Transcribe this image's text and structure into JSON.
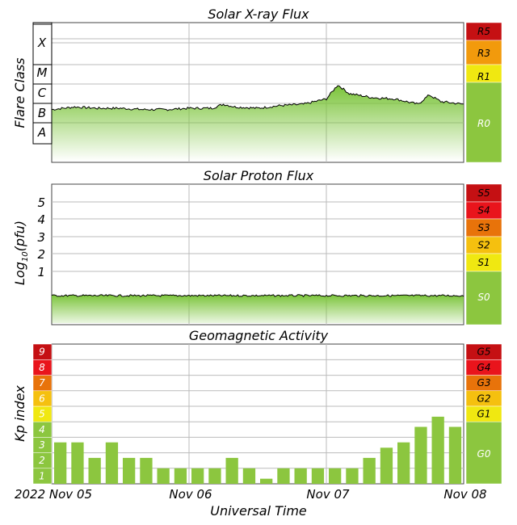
{
  "colors": {
    "green": "#8cc63f",
    "yellow": "#f0e811",
    "gold": "#f5c00f",
    "orange": "#f29a0c",
    "darkorange": "#e8730a",
    "red": "#e9141c",
    "darkred": "#c51013",
    "grid": "#bbbbbb",
    "frame": "#444444"
  },
  "chart_data": [
    {
      "type": "area",
      "title": "Solar X-ray Flux",
      "ylabel": "Flare Class",
      "yticks": [
        "X",
        "M",
        "C",
        "B",
        "A"
      ],
      "scale_labels": [
        "R5",
        "R3",
        "R1",
        "R0"
      ],
      "x": [
        0,
        4,
        8,
        12,
        16,
        20,
        24,
        28,
        30,
        32,
        36,
        40,
        44,
        48,
        50,
        52,
        56,
        60,
        62,
        64,
        66,
        68,
        72
      ],
      "values": [
        7.8,
        8.2,
        8.0,
        8.0,
        7.8,
        7.8,
        8.0,
        8.0,
        8.6,
        8.2,
        8.0,
        8.4,
        8.6,
        9.4,
        11.5,
        10.2,
        9.6,
        9.4,
        9.0,
        8.6,
        10.0,
        9.0,
        8.6
      ]
    },
    {
      "type": "area",
      "title": "Solar Proton Flux",
      "ylabel": "Log10(pfu)",
      "yticks": [
        "5",
        "4",
        "3",
        "2",
        "1"
      ],
      "scale_labels": [
        "S5",
        "S4",
        "S3",
        "S2",
        "S1",
        "S0"
      ],
      "x": [
        0,
        72
      ],
      "values": [
        -0.3,
        -0.3
      ]
    },
    {
      "type": "bar",
      "title": "Geomagnetic Activity",
      "ylabel": "Kp index",
      "xlabel": "Universal Time",
      "yticks": [
        "9",
        "8",
        "7",
        "6",
        "5",
        "4",
        "3",
        "2",
        "1"
      ],
      "scale_labels": [
        "G5",
        "G4",
        "G3",
        "G2",
        "G1",
        "G0"
      ],
      "xticks": [
        "2022 Nov 05",
        "Nov 06",
        "Nov 07",
        "Nov 08"
      ],
      "values": [
        2.67,
        2.67,
        1.67,
        2.67,
        1.67,
        1.67,
        1.0,
        1.0,
        1.0,
        1.0,
        1.67,
        1.0,
        0.33,
        1.0,
        1.0,
        1.0,
        1.0,
        1.0,
        1.67,
        2.33,
        2.67,
        3.67,
        4.33,
        3.67
      ],
      "ylim": [
        0,
        9
      ]
    }
  ]
}
